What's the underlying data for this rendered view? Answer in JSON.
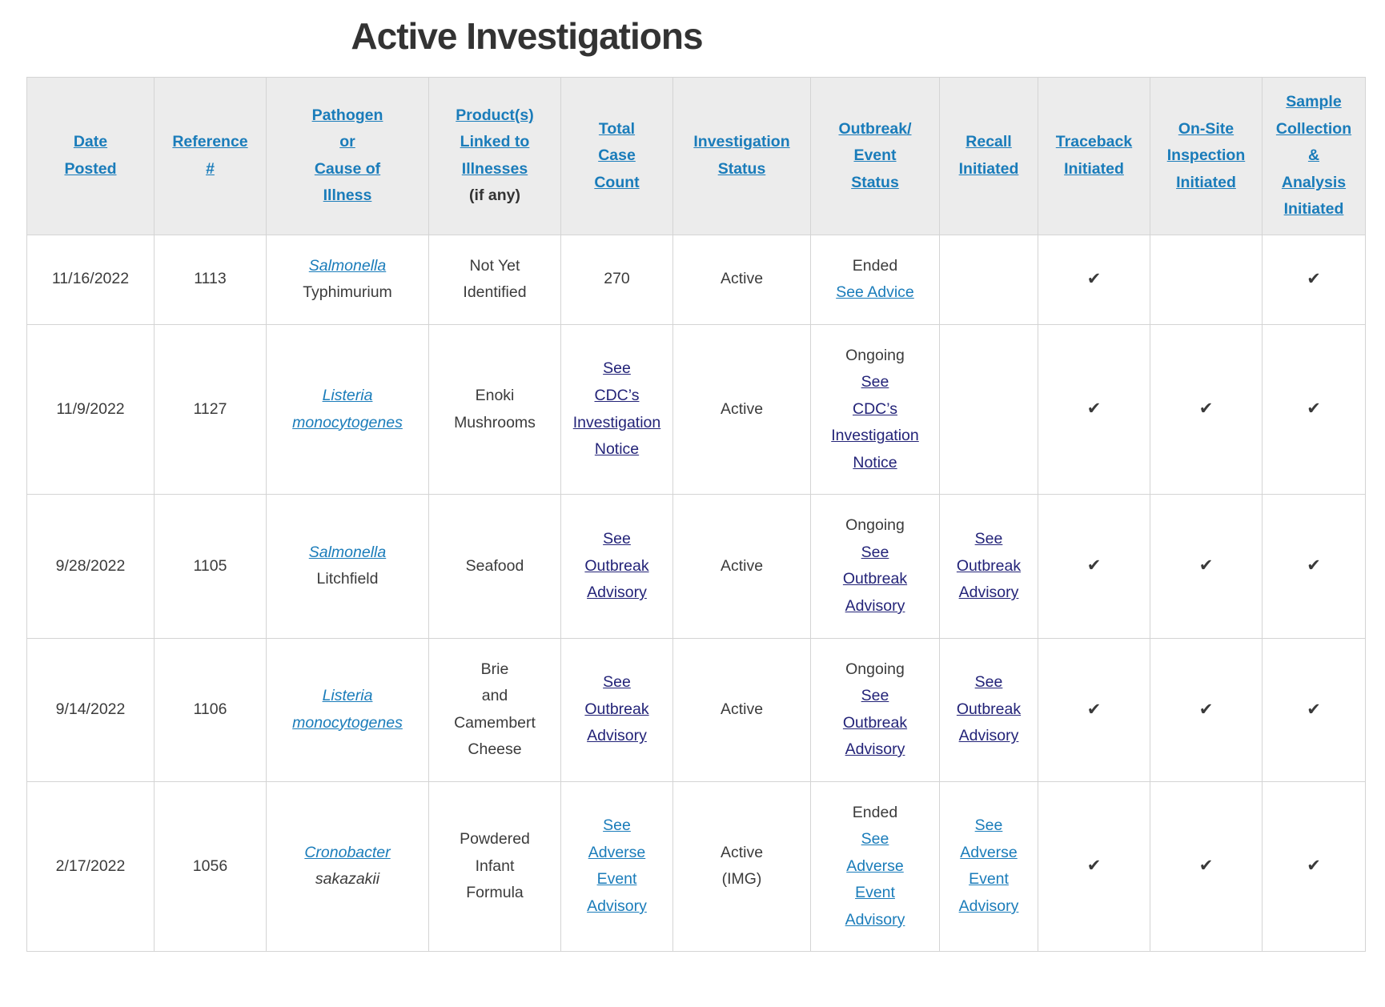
{
  "title": "Active Investigations",
  "colors": {
    "link": "#1A7CBA",
    "visited_link": "#232378",
    "header_bg": "#ECECEC",
    "border": "#D4D4D4",
    "text": "#3B3B3B",
    "title": "#333333"
  },
  "table": {
    "checkmark": "✔",
    "columns": [
      {
        "key": "date-posted",
        "label": "Date\nPosted"
      },
      {
        "key": "reference-number",
        "label": "Reference\n#"
      },
      {
        "key": "pathogen",
        "label": "Pathogen\nor\nCause of\nIllness"
      },
      {
        "key": "products-linked",
        "label": "Product(s)\nLinked to\nIllnesses",
        "suffix": "(if any)"
      },
      {
        "key": "total-case-count",
        "label": "Total\nCase\nCount"
      },
      {
        "key": "investigation-status",
        "label": "Investigation\nStatus"
      },
      {
        "key": "outbreak-event-status",
        "label": "Outbreak/\nEvent\nStatus"
      },
      {
        "key": "recall-initiated",
        "label": "Recall\nInitiated"
      },
      {
        "key": "traceback-initiated",
        "label": "Traceback\nInitiated"
      },
      {
        "key": "onsite-inspection-initiated",
        "label": "On-Site\nInspection\nInitiated"
      },
      {
        "key": "sample-collection-initiated",
        "label": "Sample\nCollection\n&\nAnalysis\nInitiated"
      }
    ],
    "rows": [
      {
        "cells": [
          [
            {
              "t": "11/16/2022"
            }
          ],
          [
            {
              "t": "1113"
            }
          ],
          [
            {
              "t": "Salmonella",
              "s": "link",
              "i": true
            },
            {
              "t": "Typhimurium"
            }
          ],
          [
            {
              "t": "Not Yet\nIdentified"
            }
          ],
          [
            {
              "t": "270"
            }
          ],
          [
            {
              "t": "Active"
            }
          ],
          [
            {
              "t": "Ended"
            },
            {
              "t": "See Advice",
              "s": "link"
            }
          ],
          [],
          [
            {
              "s": "check"
            }
          ],
          [],
          [
            {
              "s": "check"
            }
          ]
        ]
      },
      {
        "cells": [
          [
            {
              "t": "11/9/2022"
            }
          ],
          [
            {
              "t": "1127"
            }
          ],
          [
            {
              "t": "Listeria\nmonocytogenes",
              "s": "link",
              "i": true
            }
          ],
          [
            {
              "t": "Enoki\nMushrooms"
            }
          ],
          [
            {
              "t": "See\nCDC’s\nInvestigation\nNotice",
              "s": "visited"
            }
          ],
          [
            {
              "t": "Active"
            }
          ],
          [
            {
              "t": "Ongoing"
            },
            {
              "t": "See\nCDC’s\nInvestigation\nNotice",
              "s": "visited"
            }
          ],
          [],
          [
            {
              "s": "check"
            }
          ],
          [
            {
              "s": "check"
            }
          ],
          [
            {
              "s": "check"
            }
          ]
        ]
      },
      {
        "cells": [
          [
            {
              "t": "9/28/2022"
            }
          ],
          [
            {
              "t": "1105"
            }
          ],
          [
            {
              "t": "Salmonella",
              "s": "link",
              "i": true
            },
            {
              "t": "Litchfield"
            }
          ],
          [
            {
              "t": "Seafood"
            }
          ],
          [
            {
              "t": "See\nOutbreak\nAdvisory",
              "s": "visited"
            }
          ],
          [
            {
              "t": "Active"
            }
          ],
          [
            {
              "t": "Ongoing"
            },
            {
              "t": "See\nOutbreak\nAdvisory",
              "s": "visited"
            }
          ],
          [
            {
              "t": "See\nOutbreak\nAdvisory",
              "s": "visited"
            }
          ],
          [
            {
              "s": "check"
            }
          ],
          [
            {
              "s": "check"
            }
          ],
          [
            {
              "s": "check"
            }
          ]
        ]
      },
      {
        "cells": [
          [
            {
              "t": "9/14/2022"
            }
          ],
          [
            {
              "t": "1106"
            }
          ],
          [
            {
              "t": "Listeria\nmonocytogenes",
              "s": "link",
              "i": true
            }
          ],
          [
            {
              "t": "Brie\nand\nCamembert\nCheese"
            }
          ],
          [
            {
              "t": "See\nOutbreak\nAdvisory",
              "s": "visited"
            }
          ],
          [
            {
              "t": "Active"
            }
          ],
          [
            {
              "t": "Ongoing"
            },
            {
              "t": "See\nOutbreak\nAdvisory",
              "s": "visited"
            }
          ],
          [
            {
              "t": "See\nOutbreak\nAdvisory",
              "s": "visited"
            }
          ],
          [
            {
              "s": "check"
            }
          ],
          [
            {
              "s": "check"
            }
          ],
          [
            {
              "s": "check"
            }
          ]
        ]
      },
      {
        "cells": [
          [
            {
              "t": "2/17/2022"
            }
          ],
          [
            {
              "t": "1056"
            }
          ],
          [
            {
              "t": "Cronobacter",
              "s": "link",
              "i": true
            },
            {
              "t": "sakazakii",
              "i": true
            }
          ],
          [
            {
              "t": "Powdered\nInfant\nFormula"
            }
          ],
          [
            {
              "t": "See\nAdverse\nEvent\nAdvisory",
              "s": "link"
            }
          ],
          [
            {
              "t": "Active\n(IMG)"
            }
          ],
          [
            {
              "t": "Ended"
            },
            {
              "t": "See\nAdverse\nEvent\nAdvisory",
              "s": "link"
            }
          ],
          [
            {
              "t": "See\nAdverse\nEvent\nAdvisory",
              "s": "link"
            }
          ],
          [
            {
              "s": "check"
            }
          ],
          [
            {
              "s": "check"
            }
          ],
          [
            {
              "s": "check"
            }
          ]
        ]
      }
    ]
  }
}
